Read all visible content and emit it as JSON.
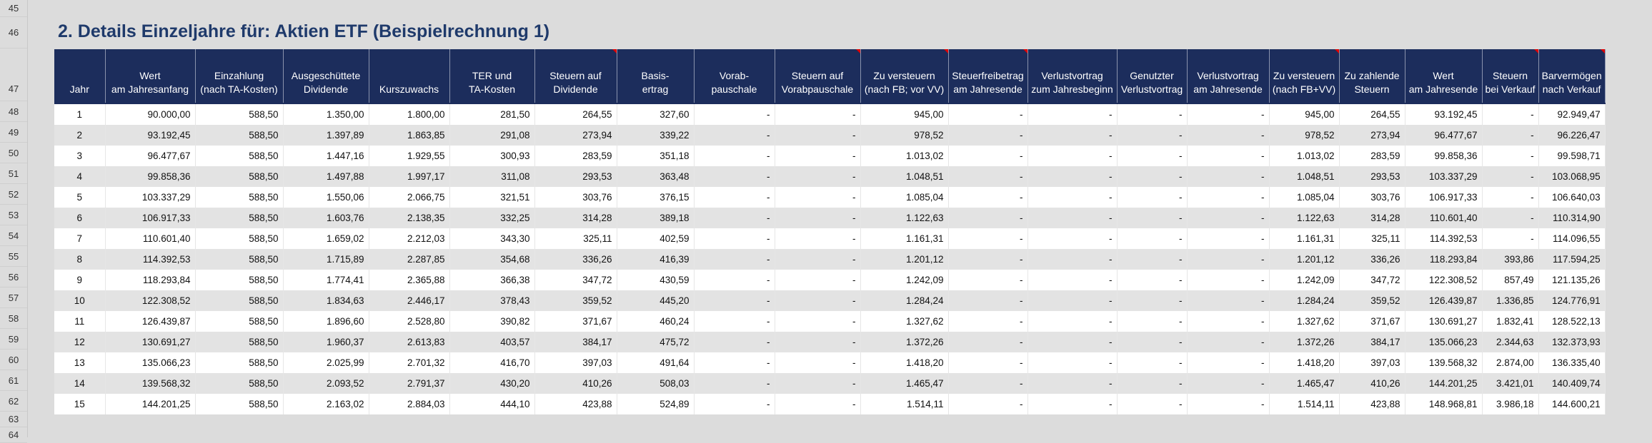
{
  "row_numbers": [
    "45",
    "46",
    "47",
    "48",
    "49",
    "50",
    "51",
    "52",
    "53",
    "54",
    "55",
    "56",
    "57",
    "58",
    "59",
    "60",
    "61",
    "62",
    "63",
    "64"
  ],
  "title": "2. Details Einzeljahre für: Aktien ETF (Beispielrechnung 1)",
  "columns": [
    {
      "lines": [
        "Jahr"
      ],
      "marked": false
    },
    {
      "lines": [
        "Wert",
        "am Jahresanfang"
      ],
      "marked": false
    },
    {
      "lines": [
        "Einzahlung",
        "(nach TA-Kosten)"
      ],
      "marked": false
    },
    {
      "lines": [
        "Ausgeschüttete",
        "Dividende"
      ],
      "marked": false
    },
    {
      "lines": [
        "Kurszuwachs"
      ],
      "marked": false
    },
    {
      "lines": [
        "TER und",
        "TA-Kosten"
      ],
      "marked": false
    },
    {
      "lines": [
        "Steuern auf",
        "Dividende"
      ],
      "marked": true
    },
    {
      "lines": [
        "Basis-",
        "ertrag"
      ],
      "marked": false
    },
    {
      "lines": [
        "Vorab-",
        "pauschale"
      ],
      "marked": false
    },
    {
      "lines": [
        "Steuern auf",
        "Vorabpauschale"
      ],
      "marked": true
    },
    {
      "lines": [
        "Zu versteuern",
        "(nach FB; vor VV)"
      ],
      "marked": true
    },
    {
      "lines": [
        "Steuerfreibetrag",
        "am Jahresende"
      ],
      "marked": true
    },
    {
      "lines": [
        "Verlustvortrag",
        "zum Jahresbeginn"
      ],
      "marked": false
    },
    {
      "lines": [
        "Genutzter",
        "Verlustvortrag"
      ],
      "marked": false
    },
    {
      "lines": [
        "Verlustvortrag",
        "am Jahresende"
      ],
      "marked": false
    },
    {
      "lines": [
        "Zu versteuern",
        "(nach FB+VV)"
      ],
      "marked": true
    },
    {
      "lines": [
        "Zu zahlende",
        "Steuern"
      ],
      "marked": false
    },
    {
      "lines": [
        "Wert",
        "am Jahresende"
      ],
      "marked": false
    },
    {
      "lines": [
        "Steuern",
        "bei Verkauf"
      ],
      "marked": true
    },
    {
      "lines": [
        "Barvermögen",
        "nach Verkauf"
      ],
      "marked": true
    }
  ],
  "rows": [
    [
      "1",
      "90.000,00",
      "588,50",
      "1.350,00",
      "1.800,00",
      "281,50",
      "264,55",
      "327,60",
      "-",
      "-",
      "945,00",
      "-",
      "-",
      "-",
      "-",
      "945,00",
      "264,55",
      "93.192,45",
      "-",
      "92.949,47"
    ],
    [
      "2",
      "93.192,45",
      "588,50",
      "1.397,89",
      "1.863,85",
      "291,08",
      "273,94",
      "339,22",
      "-",
      "-",
      "978,52",
      "-",
      "-",
      "-",
      "-",
      "978,52",
      "273,94",
      "96.477,67",
      "-",
      "96.226,47"
    ],
    [
      "3",
      "96.477,67",
      "588,50",
      "1.447,16",
      "1.929,55",
      "300,93",
      "283,59",
      "351,18",
      "-",
      "-",
      "1.013,02",
      "-",
      "-",
      "-",
      "-",
      "1.013,02",
      "283,59",
      "99.858,36",
      "-",
      "99.598,71"
    ],
    [
      "4",
      "99.858,36",
      "588,50",
      "1.497,88",
      "1.997,17",
      "311,08",
      "293,53",
      "363,48",
      "-",
      "-",
      "1.048,51",
      "-",
      "-",
      "-",
      "-",
      "1.048,51",
      "293,53",
      "103.337,29",
      "-",
      "103.068,95"
    ],
    [
      "5",
      "103.337,29",
      "588,50",
      "1.550,06",
      "2.066,75",
      "321,51",
      "303,76",
      "376,15",
      "-",
      "-",
      "1.085,04",
      "-",
      "-",
      "-",
      "-",
      "1.085,04",
      "303,76",
      "106.917,33",
      "-",
      "106.640,03"
    ],
    [
      "6",
      "106.917,33",
      "588,50",
      "1.603,76",
      "2.138,35",
      "332,25",
      "314,28",
      "389,18",
      "-",
      "-",
      "1.122,63",
      "-",
      "-",
      "-",
      "-",
      "1.122,63",
      "314,28",
      "110.601,40",
      "-",
      "110.314,90"
    ],
    [
      "7",
      "110.601,40",
      "588,50",
      "1.659,02",
      "2.212,03",
      "343,30",
      "325,11",
      "402,59",
      "-",
      "-",
      "1.161,31",
      "-",
      "-",
      "-",
      "-",
      "1.161,31",
      "325,11",
      "114.392,53",
      "-",
      "114.096,55"
    ],
    [
      "8",
      "114.392,53",
      "588,50",
      "1.715,89",
      "2.287,85",
      "354,68",
      "336,26",
      "416,39",
      "-",
      "-",
      "1.201,12",
      "-",
      "-",
      "-",
      "-",
      "1.201,12",
      "336,26",
      "118.293,84",
      "393,86",
      "117.594,25"
    ],
    [
      "9",
      "118.293,84",
      "588,50",
      "1.774,41",
      "2.365,88",
      "366,38",
      "347,72",
      "430,59",
      "-",
      "-",
      "1.242,09",
      "-",
      "-",
      "-",
      "-",
      "1.242,09",
      "347,72",
      "122.308,52",
      "857,49",
      "121.135,26"
    ],
    [
      "10",
      "122.308,52",
      "588,50",
      "1.834,63",
      "2.446,17",
      "378,43",
      "359,52",
      "445,20",
      "-",
      "-",
      "1.284,24",
      "-",
      "-",
      "-",
      "-",
      "1.284,24",
      "359,52",
      "126.439,87",
      "1.336,85",
      "124.776,91"
    ],
    [
      "11",
      "126.439,87",
      "588,50",
      "1.896,60",
      "2.528,80",
      "390,82",
      "371,67",
      "460,24",
      "-",
      "-",
      "1.327,62",
      "-",
      "-",
      "-",
      "-",
      "1.327,62",
      "371,67",
      "130.691,27",
      "1.832,41",
      "128.522,13"
    ],
    [
      "12",
      "130.691,27",
      "588,50",
      "1.960,37",
      "2.613,83",
      "403,57",
      "384,17",
      "475,72",
      "-",
      "-",
      "1.372,26",
      "-",
      "-",
      "-",
      "-",
      "1.372,26",
      "384,17",
      "135.066,23",
      "2.344,63",
      "132.373,93"
    ],
    [
      "13",
      "135.066,23",
      "588,50",
      "2.025,99",
      "2.701,32",
      "416,70",
      "397,03",
      "491,64",
      "-",
      "-",
      "1.418,20",
      "-",
      "-",
      "-",
      "-",
      "1.418,20",
      "397,03",
      "139.568,32",
      "2.874,00",
      "136.335,40"
    ],
    [
      "14",
      "139.568,32",
      "588,50",
      "2.093,52",
      "2.791,37",
      "430,20",
      "410,26",
      "508,03",
      "-",
      "-",
      "1.465,47",
      "-",
      "-",
      "-",
      "-",
      "1.465,47",
      "410,26",
      "144.201,25",
      "3.421,01",
      "140.409,74"
    ],
    [
      "15",
      "144.201,25",
      "588,50",
      "2.163,02",
      "2.884,03",
      "444,10",
      "423,88",
      "524,89",
      "-",
      "-",
      "1.514,11",
      "-",
      "-",
      "-",
      "-",
      "1.514,11",
      "423,88",
      "148.968,81",
      "3.986,18",
      "144.600,21"
    ]
  ],
  "colors": {
    "header_bg": "#1c2d5c",
    "title": "#1f3a6b",
    "row_alt": "#e3e3e3",
    "comment_marker": "#e00000"
  }
}
